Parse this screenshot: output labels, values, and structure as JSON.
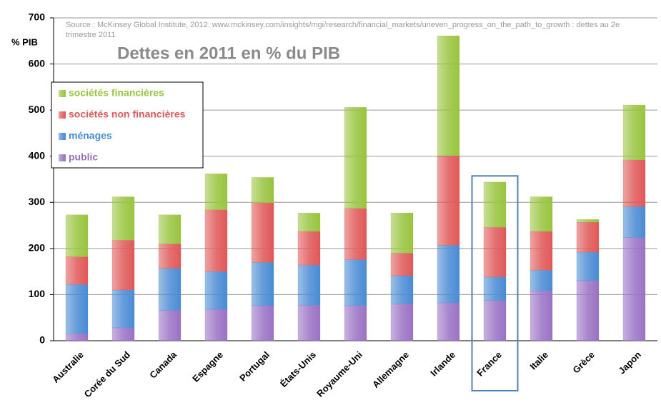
{
  "chart_data": {
    "type": "stacked_bar",
    "title": "Dettes en 2011 en % du PIB",
    "source": "Source : McKinsey Global Institute, 2012. www.mckinsey.com/insights/mgi/research/financial_markets/uneven_progress_on_the_path_to_growth : dettes au 2e trimestre 2011",
    "y_label": "% PIB",
    "categories": [
      "Australie",
      "Corée du Sud",
      "Canada",
      "Espagne",
      "Portugal",
      "États-Unis",
      "Royaume-Uni",
      "Allemagne",
      "Irlande",
      "France",
      "Italie",
      "Grèce",
      "Japon"
    ],
    "series": [
      {
        "name": "public",
        "color": "#9a72c4",
        "values": [
          15,
          28,
          66,
          68,
          76,
          77,
          76,
          80,
          82,
          87,
          108,
          130,
          224
        ]
      },
      {
        "name": "ménages",
        "color": "#4a8bd4",
        "values": [
          107,
          82,
          91,
          82,
          94,
          87,
          100,
          61,
          125,
          51,
          45,
          62,
          67
        ]
      },
      {
        "name": "sociétés non financières",
        "color": "#e05858",
        "values": [
          60,
          108,
          53,
          134,
          129,
          73,
          111,
          49,
          194,
          108,
          84,
          65,
          101
        ]
      },
      {
        "name": "sociétés financières",
        "color": "#98c43e",
        "values": [
          91,
          94,
          63,
          78,
          55,
          40,
          219,
          87,
          260,
          98,
          75,
          6,
          119
        ]
      }
    ],
    "ylim": [
      0,
      700
    ],
    "yticks": [
      0,
      100,
      200,
      300,
      400,
      500,
      600,
      700
    ],
    "grid": true,
    "legend": "upper left",
    "highlight": "France"
  }
}
